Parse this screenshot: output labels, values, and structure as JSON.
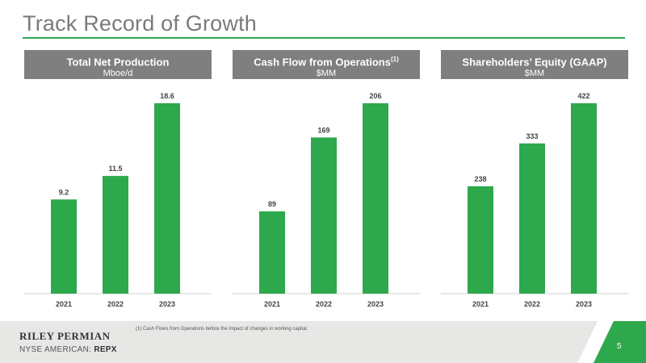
{
  "title": "Track Record of Growth",
  "colors": {
    "accent": "#2ea84c",
    "header_bg": "#7f7f7f",
    "footer_bg": "#e7e7e5"
  },
  "panels": [
    {
      "heading": "Total Net Production",
      "sup": "",
      "unit": "Mboe/d"
    },
    {
      "heading": "Cash Flow from Operations",
      "sup": "(1)",
      "unit": "$MM"
    },
    {
      "heading": "Shareholders’ Equity (GAAP)",
      "sup": "",
      "unit": "$MM"
    }
  ],
  "chart_data": [
    {
      "type": "bar",
      "title": "Total Net Production",
      "ylabel": "Mboe/d",
      "categories": [
        "2021",
        "2022",
        "2023"
      ],
      "values": [
        9.2,
        11.5,
        18.6
      ],
      "labels": [
        "9.2",
        "11.5",
        "18.6"
      ],
      "ylim": [
        0,
        18.6
      ]
    },
    {
      "type": "bar",
      "title": "Cash Flow from Operations",
      "ylabel": "$MM",
      "categories": [
        "2021",
        "2022",
        "2023"
      ],
      "values": [
        89,
        169,
        206
      ],
      "labels": [
        "89",
        "169",
        "206"
      ],
      "ylim": [
        0,
        206
      ]
    },
    {
      "type": "bar",
      "title": "Shareholders’ Equity (GAAP)",
      "ylabel": "$MM",
      "categories": [
        "2021",
        "2022",
        "2023"
      ],
      "values": [
        238,
        333,
        422
      ],
      "labels": [
        "238",
        "333",
        "422"
      ],
      "ylim": [
        0,
        422
      ]
    }
  ],
  "footer": {
    "company": "RILEY PERMIAN",
    "exchange_prefix": "NYSE AMERICAN: ",
    "ticker": "REPX",
    "footnote": "(1)  Cash Flows from Operations before the impact of changes in working capital.",
    "page": "5"
  }
}
